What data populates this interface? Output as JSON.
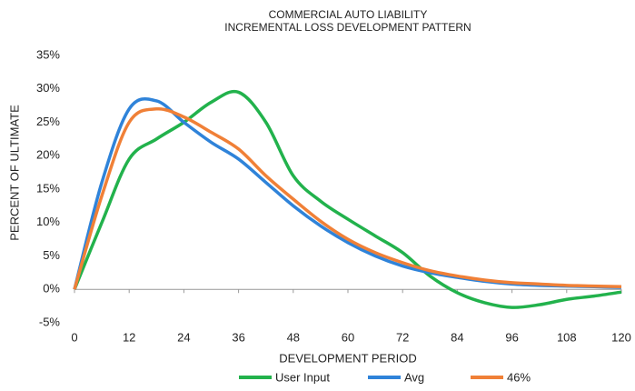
{
  "chart_data": {
    "type": "line",
    "title": [
      "COMMERCIAL AUTO LIABILITY",
      "INCREMENTAL LOSS DEVELOPMENT PATTERN"
    ],
    "y_label": "PERCENT OF ULTIMATE",
    "x_label": "DEVELOPMENT PERIOD",
    "x": [
      0,
      6,
      12,
      18,
      24,
      30,
      36,
      42,
      48,
      54,
      60,
      66,
      72,
      78,
      84,
      90,
      96,
      102,
      108,
      114,
      120
    ],
    "series": [
      {
        "name": "User Input",
        "color": "#22b24c",
        "values": [
          0,
          10,
          19.5,
          22.5,
          25,
          28,
          29.5,
          25,
          17,
          13.2,
          10.5,
          8,
          5.5,
          2,
          -0.5,
          -2,
          -2.7,
          -2.3,
          -1.5,
          -1,
          -0.4
        ]
      },
      {
        "name": "Avg",
        "color": "#2f83d9",
        "values": [
          0,
          16,
          27,
          28.2,
          25,
          22,
          19.5,
          16,
          12.5,
          9.5,
          7,
          5,
          3.5,
          2.5,
          1.8,
          1.2,
          0.8,
          0.6,
          0.5,
          0.4,
          0.3
        ]
      },
      {
        "name": "46%",
        "color": "#f08037",
        "values": [
          0,
          14,
          25,
          27,
          25.8,
          23.5,
          21,
          17,
          13.5,
          10.2,
          7.5,
          5.5,
          4,
          2.8,
          2,
          1.4,
          1,
          0.8,
          0.6,
          0.5,
          0.4
        ]
      }
    ],
    "xlim": [
      0,
      120
    ],
    "xticks": [
      0,
      12,
      24,
      36,
      48,
      60,
      72,
      84,
      96,
      108,
      120
    ],
    "ylim": [
      -5,
      35
    ],
    "yticks": [
      {
        "value": -5,
        "label": "-5%"
      },
      {
        "value": 0,
        "label": "0%"
      },
      {
        "value": 5,
        "label": "5%"
      },
      {
        "value": 10,
        "label": "10%"
      },
      {
        "value": 15,
        "label": "15%"
      },
      {
        "value": 20,
        "label": "20%"
      },
      {
        "value": 25,
        "label": "25%"
      },
      {
        "value": 30,
        "label": "30%"
      },
      {
        "value": 35,
        "label": "35%"
      }
    ],
    "grid": false,
    "legend": "bottom"
  }
}
